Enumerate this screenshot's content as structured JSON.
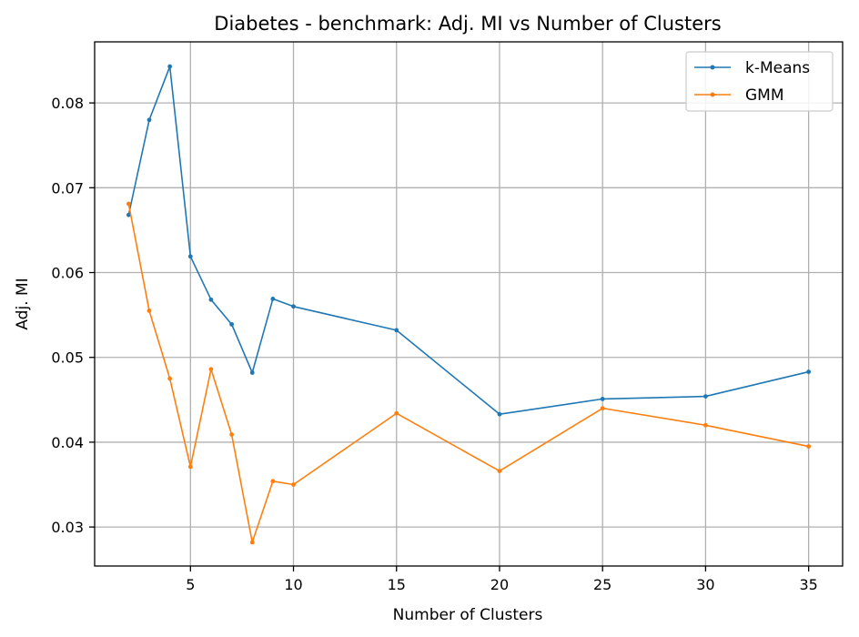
{
  "colors": {
    "kmeans": "#1f77b4",
    "gmm": "#ff7f0e",
    "grid": "#b0b0b0",
    "background": "#ffffff"
  },
  "chart_data": {
    "type": "line",
    "title": "Diabetes - benchmark: Adj. MI vs Number of Clusters",
    "xlabel": "Number of Clusters",
    "ylabel": "Adj. MI",
    "xlim": [
      0.35,
      36.65
    ],
    "ylim": [
      0.0254,
      0.0872
    ],
    "xticks": [
      5,
      10,
      15,
      20,
      25,
      30,
      35
    ],
    "yticks": [
      0.03,
      0.04,
      0.05,
      0.06,
      0.07,
      0.08
    ],
    "xtick_labels": [
      "5",
      "10",
      "15",
      "20",
      "25",
      "30",
      "35"
    ],
    "ytick_labels": [
      "0.03",
      "0.04",
      "0.05",
      "0.06",
      "0.07",
      "0.08"
    ],
    "grid": true,
    "legend_position": "top-right",
    "x": [
      2,
      3,
      4,
      5,
      6,
      7,
      8,
      9,
      10,
      15,
      20,
      25,
      30,
      35
    ],
    "series": [
      {
        "name": "k-Means",
        "color": "#1f77b4",
        "values": [
          0.0668,
          0.078,
          0.0843,
          0.0619,
          0.0568,
          0.0539,
          0.0482,
          0.0569,
          0.056,
          0.0532,
          0.0433,
          0.0451,
          0.0454,
          0.0483
        ]
      },
      {
        "name": "GMM",
        "color": "#ff7f0e",
        "values": [
          0.0681,
          0.0555,
          0.0475,
          0.0371,
          0.0486,
          0.0409,
          0.0282,
          0.0354,
          0.035,
          0.0434,
          0.0366,
          0.044,
          0.042,
          0.0395
        ]
      }
    ]
  }
}
